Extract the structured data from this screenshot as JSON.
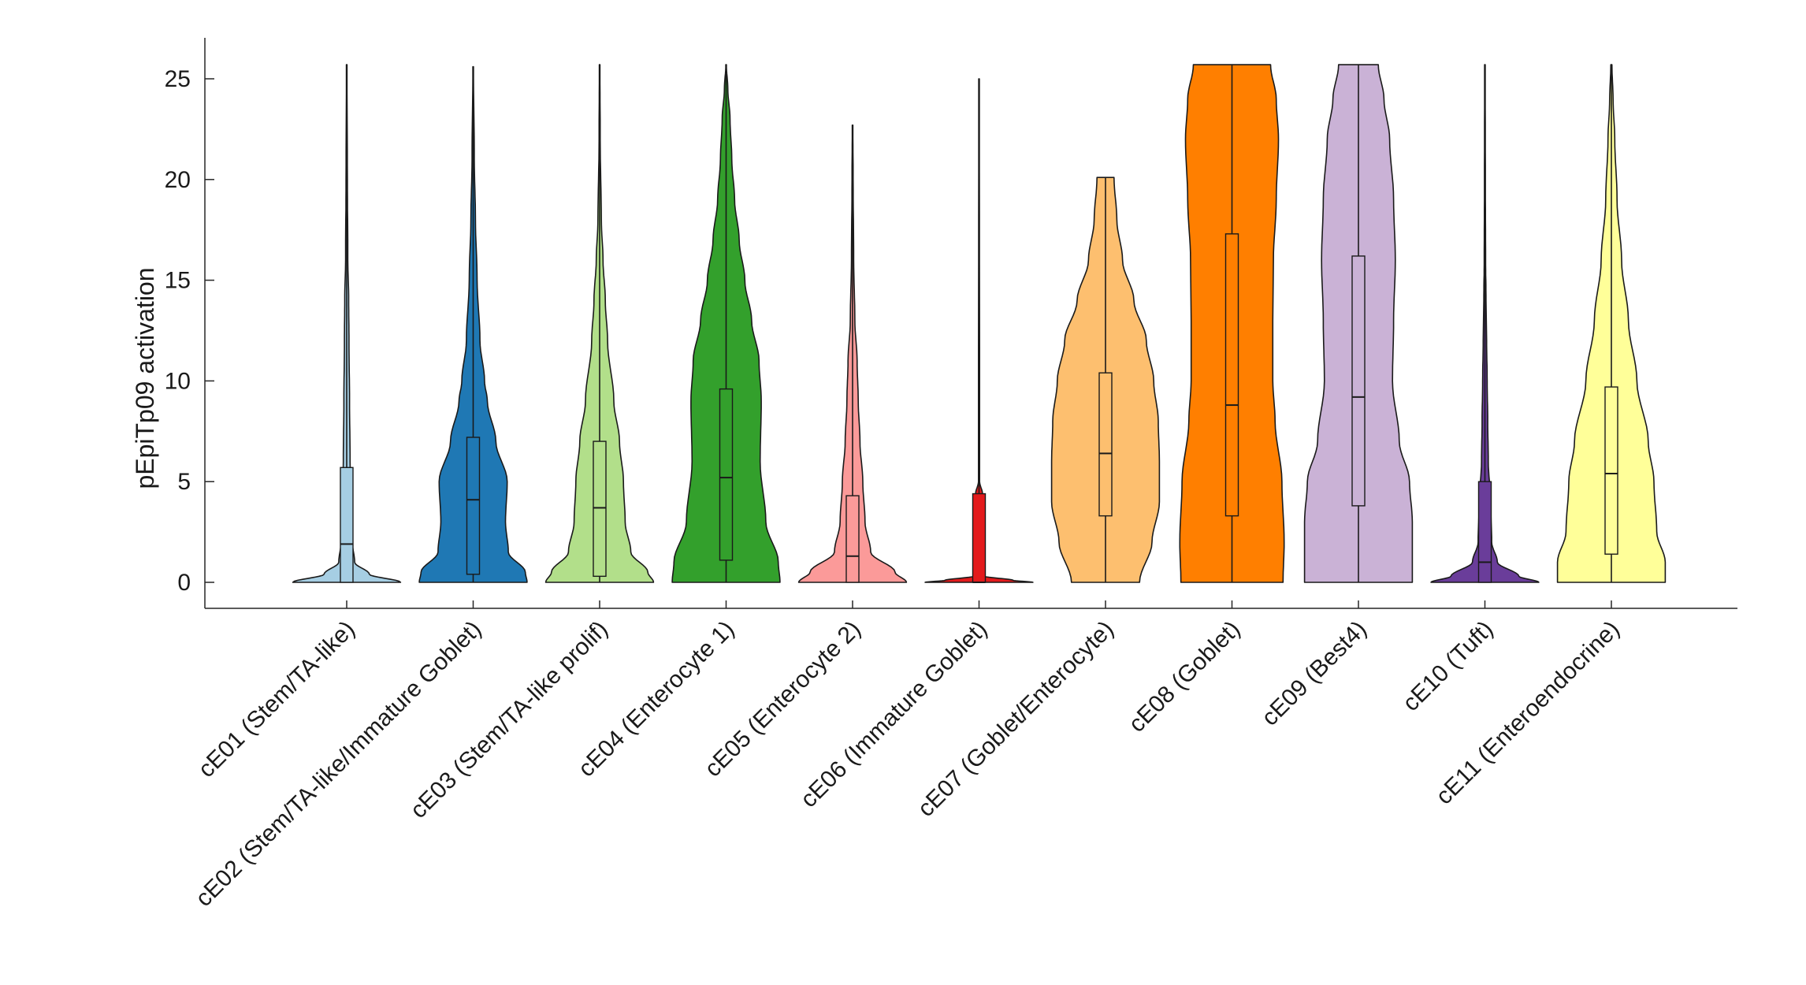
{
  "chart_data": {
    "type": "violin",
    "title": "",
    "xlabel": "",
    "ylabel": "pEpiTp09 activation",
    "ylim": [
      -1.3,
      27
    ],
    "yticks": [
      0,
      5,
      10,
      15,
      20,
      25
    ],
    "grid": false,
    "categories": [
      "cE01 (Stem/TA-like)",
      "cE02 (Stem/TA-like/Immature Goblet)",
      "cE03 (Stem/TA-like prolif)",
      "cE04 (Enterocyte 1)",
      "cE05 (Enterocyte 2)",
      "cE06 (Immature Goblet)",
      "cE07 (Goblet/Enterocyte)",
      "cE08 (Goblet)",
      "cE09 (Best4)",
      "cE10 (Tuft)",
      "cE11 (Enteroendocrine)"
    ],
    "series": [
      {
        "name": "cE01 (Stem/TA-like)",
        "color": "#a6cee3",
        "median": 1.9,
        "q1": 0,
        "q3": 5.7,
        "max": 25.7,
        "profile": [
          [
            0,
            0.95
          ],
          [
            0.4,
            0.4
          ],
          [
            1,
            0.14
          ],
          [
            2,
            0.1
          ],
          [
            4,
            0.08
          ],
          [
            6,
            0.06
          ],
          [
            9,
            0.05
          ],
          [
            12,
            0.04
          ],
          [
            14,
            0.035
          ],
          [
            16,
            0.02
          ],
          [
            20,
            0.012
          ],
          [
            25.7,
            0.005
          ]
        ]
      },
      {
        "name": "cE02 (Stem/TA-like/Immature Goblet)",
        "color": "#1f78b4",
        "median": 4.1,
        "q1": 0.4,
        "q3": 7.2,
        "max": 25.6,
        "profile": [
          [
            0,
            0.95
          ],
          [
            0.5,
            0.92
          ],
          [
            1.5,
            0.62
          ],
          [
            3,
            0.57
          ],
          [
            5,
            0.6
          ],
          [
            7,
            0.4
          ],
          [
            9,
            0.25
          ],
          [
            10,
            0.2
          ],
          [
            12,
            0.12
          ],
          [
            15,
            0.07
          ],
          [
            18,
            0.04
          ],
          [
            21,
            0.02
          ],
          [
            25.6,
            0.005
          ]
        ]
      },
      {
        "name": "cE03 (Stem/TA-like prolif)",
        "color": "#b2df8a",
        "median": 3.7,
        "q1": 0.3,
        "q3": 7.0,
        "max": 25.7,
        "profile": [
          [
            0,
            0.95
          ],
          [
            0.5,
            0.85
          ],
          [
            1.5,
            0.55
          ],
          [
            3,
            0.45
          ],
          [
            5,
            0.42
          ],
          [
            7,
            0.35
          ],
          [
            9,
            0.25
          ],
          [
            12,
            0.14
          ],
          [
            14,
            0.1
          ],
          [
            16,
            0.06
          ],
          [
            18,
            0.03
          ],
          [
            22,
            0.01
          ],
          [
            25.7,
            0.005
          ]
        ]
      },
      {
        "name": "cE04 (Enterocyte 1)",
        "color": "#33a02c",
        "median": 5.2,
        "q1": 1.1,
        "q3": 9.6,
        "max": 25.7,
        "profile": [
          [
            0,
            0.95
          ],
          [
            1,
            0.92
          ],
          [
            3,
            0.7
          ],
          [
            6,
            0.6
          ],
          [
            9,
            0.62
          ],
          [
            11,
            0.58
          ],
          [
            13,
            0.45
          ],
          [
            15,
            0.33
          ],
          [
            17,
            0.23
          ],
          [
            19,
            0.15
          ],
          [
            21,
            0.1
          ],
          [
            23,
            0.07
          ],
          [
            24.5,
            0.03
          ],
          [
            25.7,
            0.005
          ]
        ]
      },
      {
        "name": "cE05 (Enterocyte 2)",
        "color": "#fb9a99",
        "median": 1.3,
        "q1": 0,
        "q3": 4.3,
        "max": 22.7,
        "profile": [
          [
            0,
            0.95
          ],
          [
            0.5,
            0.75
          ],
          [
            1.5,
            0.32
          ],
          [
            3,
            0.22
          ],
          [
            5,
            0.18
          ],
          [
            7,
            0.13
          ],
          [
            9,
            0.1
          ],
          [
            11,
            0.08
          ],
          [
            13,
            0.04
          ],
          [
            16,
            0.02
          ],
          [
            20,
            0.01
          ],
          [
            22.7,
            0.005
          ]
        ]
      },
      {
        "name": "cE06 (Immature Goblet)",
        "color": "#e31a1c",
        "median": 0,
        "q1": 0,
        "q3": 4.4,
        "max": 25,
        "profile": [
          [
            0,
            0.95
          ],
          [
            0.1,
            0.6
          ],
          [
            0.3,
            0.1
          ],
          [
            1,
            0.06
          ],
          [
            4.4,
            0.06
          ],
          [
            5,
            0.01
          ],
          [
            7,
            0.01
          ],
          [
            25,
            0.005
          ]
        ]
      },
      {
        "name": "cE07 (Goblet/Enterocyte)",
        "color": "#fdbf6f",
        "median": 6.4,
        "q1": 3.3,
        "q3": 10.4,
        "max": 20.1,
        "profile": [
          [
            0,
            0.6
          ],
          [
            2,
            0.82
          ],
          [
            4,
            0.95
          ],
          [
            6,
            0.95
          ],
          [
            8,
            0.93
          ],
          [
            10,
            0.85
          ],
          [
            12,
            0.72
          ],
          [
            14,
            0.5
          ],
          [
            16,
            0.3
          ],
          [
            18,
            0.2
          ],
          [
            20.1,
            0.15
          ]
        ]
      },
      {
        "name": "cE08 (Goblet)",
        "color": "#ff7f00",
        "median": 8.8,
        "q1": 3.3,
        "q3": 17.3,
        "max": 25.7,
        "profile": [
          [
            0,
            0.9
          ],
          [
            2,
            0.92
          ],
          [
            5,
            0.88
          ],
          [
            8,
            0.76
          ],
          [
            10,
            0.72
          ],
          [
            13,
            0.72
          ],
          [
            16,
            0.73
          ],
          [
            19,
            0.78
          ],
          [
            22,
            0.82
          ],
          [
            24,
            0.78
          ],
          [
            25.7,
            0.68
          ]
        ]
      },
      {
        "name": "cE09 (Best4)",
        "color": "#cab2d6",
        "median": 9.2,
        "q1": 3.8,
        "q3": 16.2,
        "max": 25.7,
        "profile": [
          [
            0,
            0.95
          ],
          [
            3,
            0.95
          ],
          [
            5,
            0.9
          ],
          [
            7,
            0.72
          ],
          [
            10,
            0.6
          ],
          [
            13,
            0.62
          ],
          [
            16,
            0.65
          ],
          [
            19,
            0.62
          ],
          [
            22,
            0.55
          ],
          [
            24,
            0.45
          ],
          [
            25.7,
            0.35
          ]
        ]
      },
      {
        "name": "cE10 (Tuft)",
        "color": "#6a3d9a",
        "median": 1.0,
        "q1": 0,
        "q3": 5.0,
        "max": 25.7,
        "profile": [
          [
            0,
            0.95
          ],
          [
            0.3,
            0.6
          ],
          [
            1,
            0.22
          ],
          [
            2,
            0.12
          ],
          [
            4,
            0.1
          ],
          [
            6,
            0.06
          ],
          [
            8,
            0.05
          ],
          [
            10,
            0.04
          ],
          [
            12,
            0.03
          ],
          [
            14,
            0.02
          ],
          [
            16,
            0.012
          ],
          [
            20,
            0.008
          ],
          [
            25.7,
            0.005
          ]
        ]
      },
      {
        "name": "cE11 (Enteroendocrine)",
        "color": "#ffff99",
        "median": 5.4,
        "q1": 1.4,
        "q3": 9.7,
        "max": 25.7,
        "profile": [
          [
            0,
            0.95
          ],
          [
            1,
            0.95
          ],
          [
            2.5,
            0.8
          ],
          [
            5,
            0.75
          ],
          [
            7,
            0.65
          ],
          [
            10,
            0.45
          ],
          [
            13,
            0.3
          ],
          [
            16,
            0.18
          ],
          [
            19,
            0.1
          ],
          [
            22,
            0.06
          ],
          [
            24,
            0.03
          ],
          [
            25.7,
            0.01
          ]
        ]
      }
    ]
  }
}
